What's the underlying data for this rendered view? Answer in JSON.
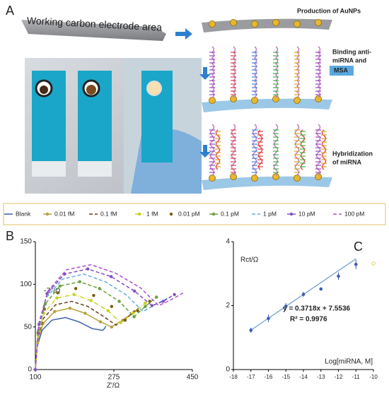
{
  "panel_a": {
    "label": "A",
    "electrode_text": "Working carbon electrode area",
    "step1": "Production of AuNPs",
    "step2_lines": [
      "Binding anti-",
      "miRNA and"
    ],
    "step2_box": "MSA",
    "step3_lines": [
      "Hybridization",
      "of miRNA"
    ]
  },
  "chart_data": [
    {
      "type": "line",
      "panel": "B",
      "xlabel": "Z'/Ω",
      "ylabel": "-Z''/Ω",
      "xlim": [
        100,
        450
      ],
      "xticks": [
        100,
        275,
        450
      ],
      "ylim": [
        0,
        150
      ],
      "yticks": [
        0,
        50,
        100,
        150
      ],
      "series": [
        {
          "name": "Blank",
          "color": "#3a5fb0",
          "dash": "solid",
          "markers": false,
          "x": [
            100,
            104,
            115,
            137,
            167,
            197,
            227,
            250,
            254,
            257
          ],
          "values": [
            0,
            27,
            46,
            58,
            61,
            56,
            48,
            46,
            48,
            51
          ]
        },
        {
          "name": "0.01 fM",
          "color": "#b8a040",
          "dash": "solid",
          "markers": true,
          "x": [
            100,
            105,
            117,
            143,
            177,
            211,
            245,
            270,
            295,
            320
          ],
          "values": [
            0,
            32,
            54,
            68,
            72,
            66,
            56,
            50,
            58,
            68
          ]
        },
        {
          "name": "0.1 fM",
          "color": "#6b3a1e",
          "dash": "dashed",
          "markers": false,
          "x": [
            100,
            105,
            118,
            145,
            181,
            217,
            253,
            280,
            305,
            330
          ],
          "values": [
            0,
            36,
            60,
            76,
            80,
            74,
            62,
            52,
            61,
            72
          ]
        },
        {
          "name": "1 fM",
          "color": "#c8d020",
          "dash": "dashdot",
          "markers": true,
          "x": [
            100,
            106,
            119,
            148,
            186,
            224,
            262,
            290,
            318,
            345
          ],
          "values": [
            0,
            40,
            66,
            84,
            88,
            81,
            69,
            55,
            66,
            78
          ]
        },
        {
          "name": "0.01 pM",
          "color": "#7a5a10",
          "dash": "none",
          "markers": true,
          "x": [
            100,
            106,
            120,
            150,
            190,
            230,
            270,
            300,
            328,
            355
          ],
          "values": [
            0,
            43,
            71,
            90,
            95,
            87,
            74,
            58,
            69,
            80
          ]
        },
        {
          "name": "0.1 pM",
          "color": "#6aa040",
          "dash": "dashed",
          "markers": true,
          "x": [
            100,
            107,
            122,
            155,
            199,
            243,
            287,
            320,
            345,
            370
          ],
          "values": [
            0,
            46,
            77,
            98,
            103,
            95,
            80,
            62,
            74,
            85
          ]
        },
        {
          "name": "1 pM",
          "color": "#60b0e0",
          "dash": "dashed",
          "markers": false,
          "x": [
            100,
            107,
            124,
            160,
            208,
            256,
            304,
            340,
            370,
            400
          ],
          "values": [
            0,
            50,
            84,
            106,
            112,
            103,
            87,
            68,
            77,
            85
          ]
        },
        {
          "name": "10 pM",
          "color": "#8050c0",
          "dash": "dashed",
          "markers": true,
          "x": [
            100,
            108,
            126,
            165,
            217,
            269,
            321,
            360,
            385,
            410
          ],
          "values": [
            0,
            53,
            89,
            112,
            118,
            109,
            92,
            75,
            80,
            88
          ]
        },
        {
          "name": "100 pM",
          "color": "#b050d0",
          "dash": "dashed",
          "markers": false,
          "x": [
            100,
            108,
            128,
            169,
            224,
            279,
            334,
            375,
            403,
            430
          ],
          "values": [
            0,
            55,
            92,
            117,
            123,
            113,
            96,
            75,
            82,
            90
          ]
        }
      ]
    },
    {
      "type": "scatter",
      "panel": "C",
      "xlabel": "Log[miRNA, M]",
      "ylabel": "Rct/Ω",
      "xlim": [
        -18,
        -10
      ],
      "xticks": [
        -18,
        -17,
        -16,
        -15,
        -14,
        -13,
        -12,
        -11,
        -10
      ],
      "ylim": [
        0,
        4
      ],
      "yticks": [
        0,
        2,
        4
      ],
      "color": "#3a5fb0",
      "x": [
        -17,
        -16,
        -15,
        -14,
        -13,
        -12,
        -11
      ],
      "values": [
        1.23,
        1.6,
        1.98,
        2.35,
        2.52,
        2.92,
        3.29
      ],
      "errors": [
        0.08,
        0.12,
        0.1,
        0.08,
        0.04,
        0.12,
        0.15
      ],
      "extra_point": {
        "x": -10,
        "value": 3.32,
        "color": "#e0d070"
      },
      "fit": {
        "slope": 0.3718,
        "intercept": 7.5536,
        "color": "#6a9ad0"
      },
      "equation": "y = 0.3718x + 7.5536",
      "r2": "R² = 0.9976"
    }
  ]
}
